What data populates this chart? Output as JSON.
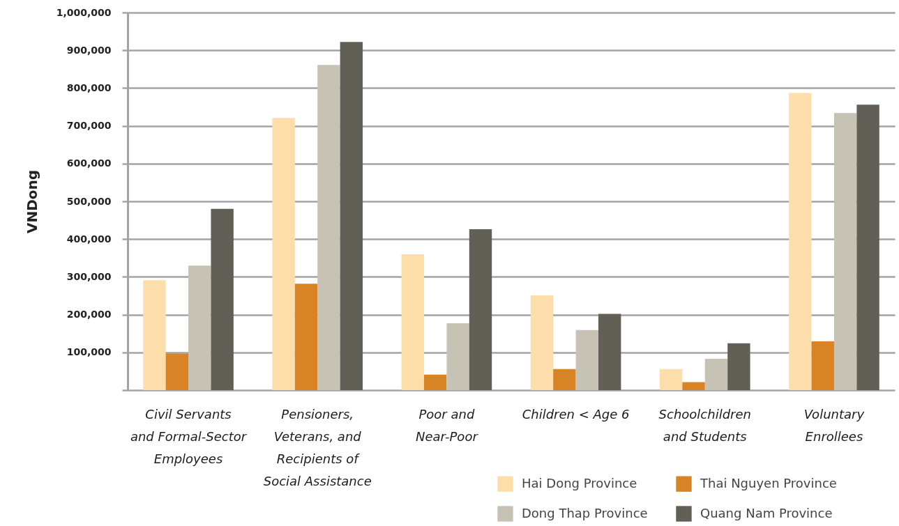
{
  "chart_data": {
    "type": "bar",
    "ylabel": "VNDong",
    "categories": [
      "Civil Servants and Formal-Sector Employees",
      "Pensioners, Veterans, and Recipients of Social Assistance",
      "Poor and Near-Poor",
      "Children < Age 6",
      "Schoolchildren and Students",
      "Voluntary Enrollees"
    ],
    "series": [
      {
        "name": "Hai Dong Province",
        "color": "#fddeab",
        "values": [
          291000,
          721000,
          360000,
          251000,
          56000,
          787000
        ]
      },
      {
        "name": "Thai Nguyen Province",
        "color": "#d98327",
        "values": [
          97000,
          282000,
          41000,
          56000,
          21000,
          129000
        ]
      },
      {
        "name": "Dong Thap Province",
        "color": "#c6c3b4",
        "values": [
          330000,
          861000,
          177000,
          159000,
          83000,
          734000
        ]
      },
      {
        "name": "Quang Nam Province",
        "color": "#625f57",
        "values": [
          480000,
          922000,
          426000,
          202000,
          124000,
          756000
        ]
      }
    ],
    "ylim": [
      0,
      1000000
    ],
    "yticks": [
      {
        "value": 0,
        "label": null
      },
      {
        "value": 100000,
        "label": "100,000"
      },
      {
        "value": 200000,
        "label": "200,000"
      },
      {
        "value": 300000,
        "label": "300,000"
      },
      {
        "value": 400000,
        "label": "400,000"
      },
      {
        "value": 500000,
        "label": "500,000"
      },
      {
        "value": 600000,
        "label": "600,000"
      },
      {
        "value": 700000,
        "label": "700,000"
      },
      {
        "value": 800000,
        "label": "800,000"
      },
      {
        "value": 900000,
        "label": "900,000"
      },
      {
        "value": 1000000,
        "label": "1,000,000"
      }
    ],
    "grid": "y",
    "legend": "bottom right"
  }
}
